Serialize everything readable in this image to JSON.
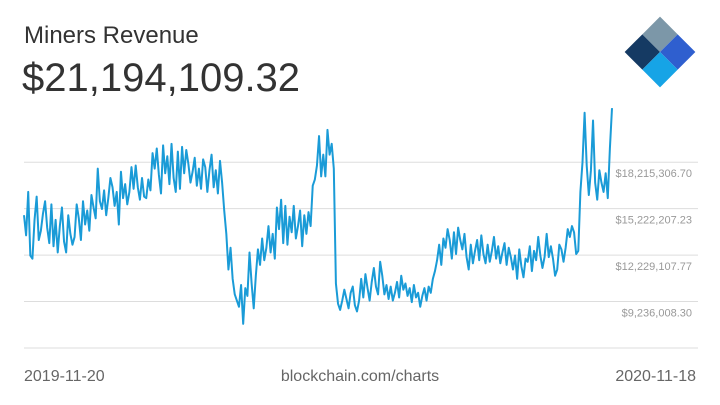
{
  "header": {
    "title": "Miners Revenue",
    "current_value": "$21,194,109.32"
  },
  "logo": {
    "icon": "blockchain-logo-icon"
  },
  "footer": {
    "start_date": "2019-11-20",
    "source": "blockchain.com/charts",
    "end_date": "2020-11-18"
  },
  "colors": {
    "line": "#1a9bd7",
    "grid": "#dddddd",
    "tick_text": "#999999",
    "text": "#333333"
  },
  "chart_data": {
    "type": "line",
    "title": "Miners Revenue",
    "x_range": [
      "2019-11-20",
      "2020-11-18"
    ],
    "y_ticks": [
      {
        "value": 18215306.7,
        "label": "$18,215,306.70"
      },
      {
        "value": 15222207.23,
        "label": "$15,222,207.23"
      },
      {
        "value": 12229107.77,
        "label": "$12,229,107.77"
      },
      {
        "value": 9236008.3,
        "label": "$9,236,008.30"
      }
    ],
    "ylim": [
      6242908.84,
      21708000
    ],
    "grid": true,
    "series": [
      {
        "values": [
          14800000,
          13500000,
          16300000,
          12200000,
          12000000,
          14500000,
          16000000,
          13200000,
          13800000,
          14900000,
          15700000,
          14000000,
          13000000,
          15500000,
          12800000,
          14500000,
          12400000,
          14100000,
          15300000,
          13100000,
          12400000,
          14800000,
          13600000,
          12900000,
          13400000,
          15500000,
          14600000,
          13200000,
          15700000,
          14200000,
          15100000,
          13800000,
          16100000,
          15300000,
          14600000,
          17800000,
          15700000,
          15200000,
          16400000,
          14800000,
          15900000,
          17200000,
          16600000,
          15400000,
          16300000,
          14200000,
          17600000,
          15900000,
          16800000,
          15500000,
          16300000,
          17900000,
          16500000,
          18000000,
          16600000,
          15800000,
          17200000,
          16000000,
          15900000,
          17100000,
          16400000,
          18800000,
          17800000,
          19100000,
          17400000,
          16200000,
          19300000,
          17500000,
          18600000,
          16800000,
          19400000,
          17200000,
          16300000,
          18900000,
          16500000,
          19200000,
          17500000,
          19000000,
          18100000,
          16900000,
          17600000,
          18500000,
          16700000,
          17800000,
          16500000,
          18400000,
          17900000,
          16300000,
          17700000,
          18700000,
          16600000,
          17700000,
          16200000,
          18300000,
          16900000,
          15100000,
          13600000,
          11300000,
          12700000,
          10700000,
          9700000,
          9300000,
          8900000,
          10300000,
          7800000,
          10100000,
          9600000,
          12400000,
          10400000,
          8800000,
          10900000,
          12600000,
          11600000,
          13300000,
          11900000,
          12700000,
          14100000,
          12400000,
          13600000,
          12000000,
          15300000,
          13900000,
          15800000,
          13000000,
          15400000,
          12900000,
          14700000,
          13700000,
          15400000,
          13300000,
          14100000,
          15100000,
          12800000,
          14800000,
          13600000,
          15000000,
          14100000,
          16700000,
          17100000,
          18000000,
          19900000,
          17300000,
          18700000,
          17300000,
          20300000,
          18700000,
          19400000,
          17800000,
          10400000,
          9100000,
          8700000,
          9300000,
          10000000,
          9400000,
          8800000,
          9800000,
          10200000,
          9000000,
          8600000,
          9300000,
          10700000,
          9500000,
          11000000,
          10100000,
          9300000,
          10500000,
          11400000,
          10200000,
          9700000,
          11800000,
          10900000,
          9700000,
          10300000,
          9400000,
          10200000,
          9300000,
          9800000,
          10500000,
          9500000,
          10900000,
          10000000,
          10400000,
          9600000,
          10100000,
          9200000,
          10300000,
          9500000,
          9800000,
          8900000,
          9600000,
          10100000,
          9300000,
          10200000,
          9800000,
          10700000,
          11200000,
          11900000,
          12900000,
          11600000,
          13300000,
          12700000,
          13900000,
          13200000,
          12000000,
          13700000,
          12300000,
          14000000,
          13200000,
          12600000,
          13600000,
          12100000,
          11300000,
          12900000,
          11700000,
          12500000,
          13200000,
          11900000,
          13500000,
          12300000,
          11700000,
          12900000,
          11800000,
          12500000,
          13400000,
          12000000,
          12800000,
          11700000,
          12400000,
          13000000,
          11600000,
          12700000,
          12100000,
          11300000,
          12200000,
          10700000,
          12600000,
          11500000,
          10800000,
          12000000,
          11800000,
          12800000,
          11200000,
          12500000,
          11900000,
          13400000,
          12200000,
          11400000,
          12100000,
          13600000,
          12100000,
          12800000,
          12000000,
          10900000,
          11300000,
          12900000,
          12600000,
          11800000,
          12700000,
          13900000,
          13400000,
          14100000,
          13700000,
          12300000,
          12500000,
          16300000,
          18200000,
          21400000,
          18000000,
          16100000,
          17700000,
          20900000,
          16900000,
          15800000,
          17700000,
          16900000,
          16300000,
          17500000,
          15900000,
          19100000,
          21700000
        ]
      }
    ]
  }
}
